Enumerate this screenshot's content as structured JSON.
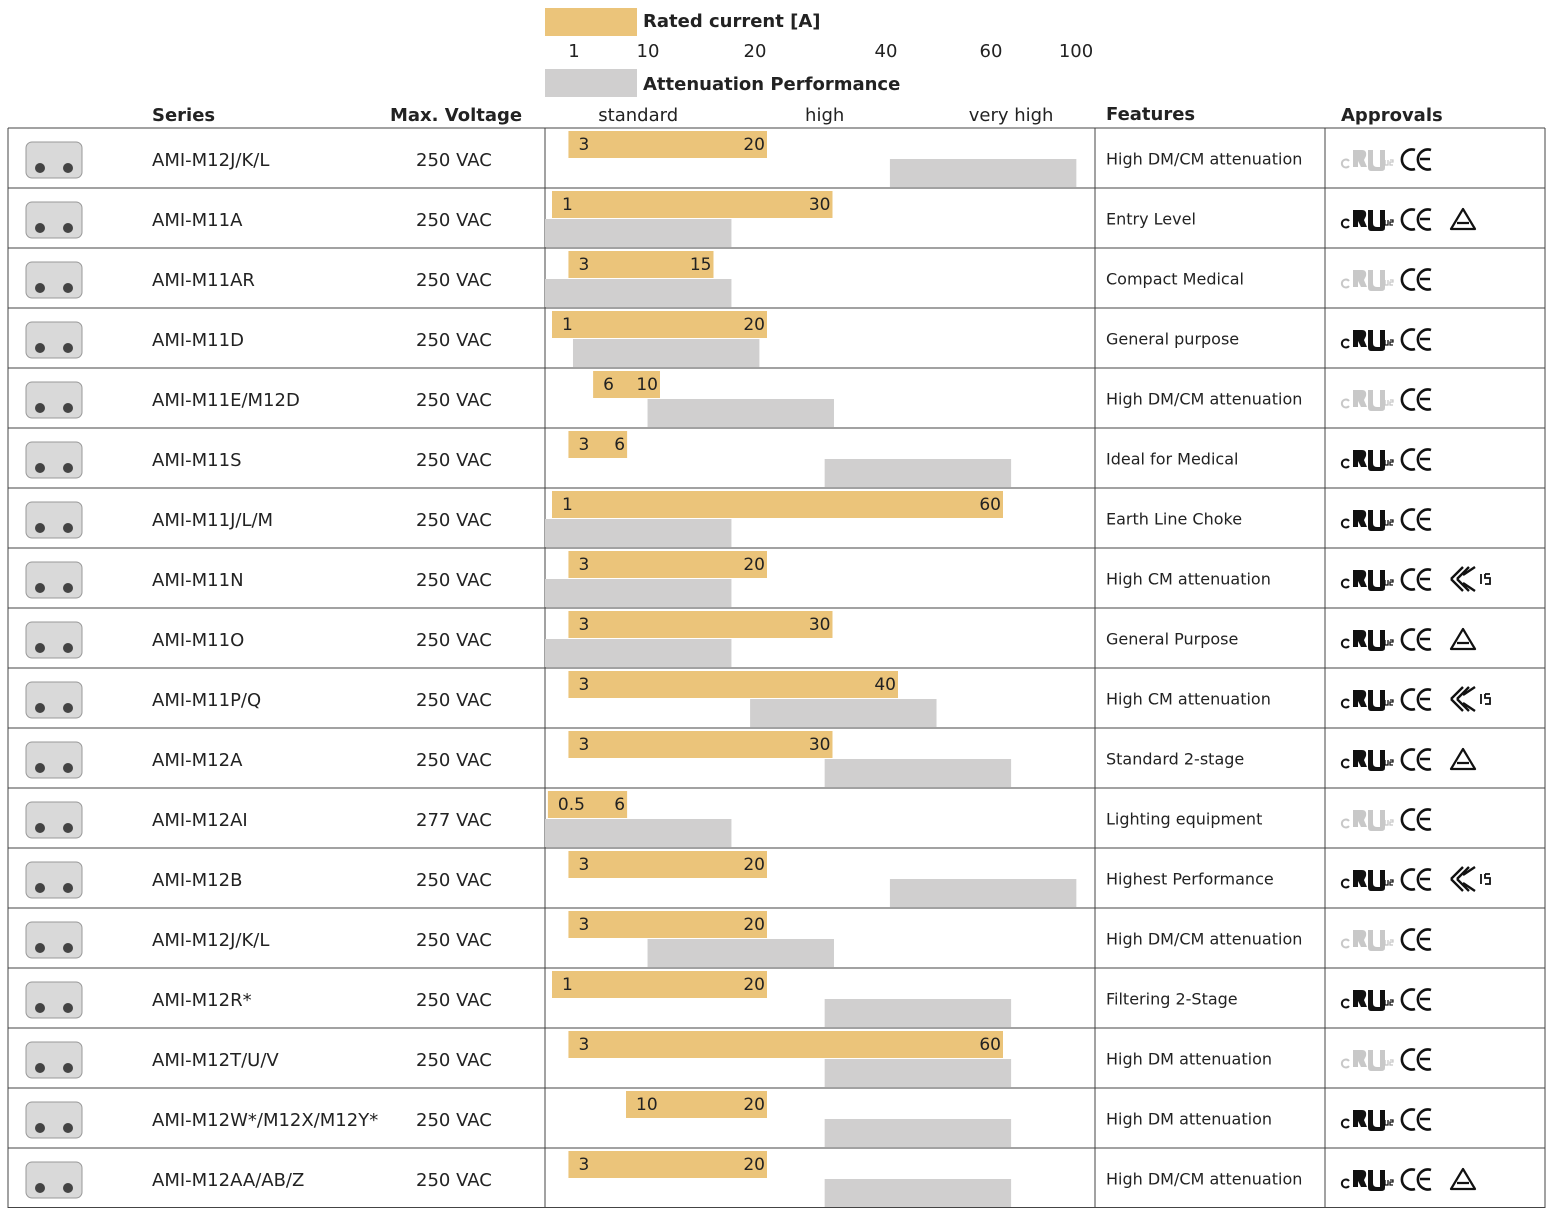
{
  "legend": {
    "current_title": "Rated current [A]",
    "current_color": "#ebc47a",
    "current_ticks": [
      1,
      10,
      20,
      40,
      60,
      100
    ],
    "attenuation_title": "Attenuation Performance",
    "attenuation_color": "#d0cfcf",
    "attenuation_lim": [
      0.5,
      3.45
    ],
    "attenuation_levels": [
      {
        "value": 1,
        "label": "standard"
      },
      {
        "value": 2,
        "label": "high"
      },
      {
        "value": 3,
        "label": "very high"
      }
    ]
  },
  "headers": {
    "series": "Series",
    "voltage": "Max. Voltage",
    "features": "Features",
    "approvals": "Approvals"
  },
  "rows": [
    {
      "series": "AMI-M12J/K/L",
      "voltage": "250 VAC",
      "current": [
        3,
        20
      ],
      "attenuation": [
        2.35,
        3.35
      ],
      "features": "High DM/CM attenuation"
    },
    {
      "series": "AMI-M11A",
      "voltage": "250 VAC",
      "current": [
        1,
        30
      ],
      "attenuation": [
        0.5,
        1.5
      ],
      "features": "Entry Level"
    },
    {
      "series": "AMI-M11AR",
      "voltage": "250 VAC",
      "current": [
        3,
        15
      ],
      "attenuation": [
        0.5,
        1.5
      ],
      "features": "Compact Medical"
    },
    {
      "series": "AMI-M11D",
      "voltage": "250 VAC",
      "current": [
        1,
        20
      ],
      "attenuation": [
        0.65,
        1.65
      ],
      "features": "General purpose"
    },
    {
      "series": "AMI-M11E/M12D",
      "voltage": "250 VAC",
      "current": [
        6,
        10
      ],
      "attenuation": [
        1.05,
        2.05
      ],
      "features": "High DM/CM attenuation"
    },
    {
      "series": "AMI-M11S",
      "voltage": "250 VAC",
      "current": [
        3,
        6
      ],
      "attenuation": [
        2,
        3
      ],
      "features": "Ideal for Medical"
    },
    {
      "series": "AMI-M11J/L/M",
      "voltage": "250 VAC",
      "current": [
        1,
        60
      ],
      "attenuation": [
        0.5,
        1.5
      ],
      "features": "Earth Line Choke"
    },
    {
      "series": "AMI-M11N",
      "voltage": "250 VAC",
      "current": [
        3,
        20
      ],
      "attenuation": [
        0.5,
        1.5
      ],
      "features": "High CM attenuation"
    },
    {
      "series": "AMI-M11O",
      "voltage": "250 VAC",
      "current": [
        3,
        30
      ],
      "attenuation": [
        0.5,
        1.5
      ],
      "features": "General Purpose"
    },
    {
      "series": "AMI-M11P/Q",
      "voltage": "250 VAC",
      "current": [
        3,
        40
      ],
      "attenuation": [
        1.6,
        2.6
      ],
      "features": "High CM attenuation"
    },
    {
      "series": "AMI-M12A",
      "voltage": "250 VAC",
      "current": [
        3,
        30
      ],
      "attenuation": [
        2,
        3
      ],
      "features": "Standard 2-stage"
    },
    {
      "series": "AMI-M12AI",
      "voltage": "277 VAC",
      "current": [
        0.5,
        6
      ],
      "attenuation": [
        0.5,
        1.5
      ],
      "features": "Lighting equipment"
    },
    {
      "series": "AMI-M12B",
      "voltage": "250 VAC",
      "current": [
        3,
        20
      ],
      "attenuation": [
        2.35,
        3.35
      ],
      "features": "Highest Performance"
    },
    {
      "series": "AMI-M12J/K/L",
      "voltage": "250 VAC",
      "current": [
        3,
        20
      ],
      "attenuation": [
        1.05,
        2.05
      ],
      "features": "High DM/CM attenuation"
    },
    {
      "series": "AMI-M12R*",
      "voltage": "250 VAC",
      "current": [
        1,
        20
      ],
      "attenuation": [
        2,
        3
      ],
      "features": "Filtering 2-Stage"
    },
    {
      "series": "AMI-M12T/U/V",
      "voltage": "250 VAC",
      "current": [
        3,
        60
      ],
      "attenuation": [
        2,
        3
      ],
      "features": "High DM attenuation"
    },
    {
      "series": "AMI-M12W*/M12X/M12Y*",
      "voltage": "250 VAC",
      "current": [
        10,
        20
      ],
      "attenuation": [
        2,
        3
      ],
      "features": "High DM attenuation"
    },
    {
      "series": "AMI-M12AA/AB/Z",
      "voltage": "250 VAC",
      "current": [
        3,
        20
      ],
      "attenuation": [
        2,
        3
      ],
      "features": "High DM/CM attenuation"
    }
  ]
}
